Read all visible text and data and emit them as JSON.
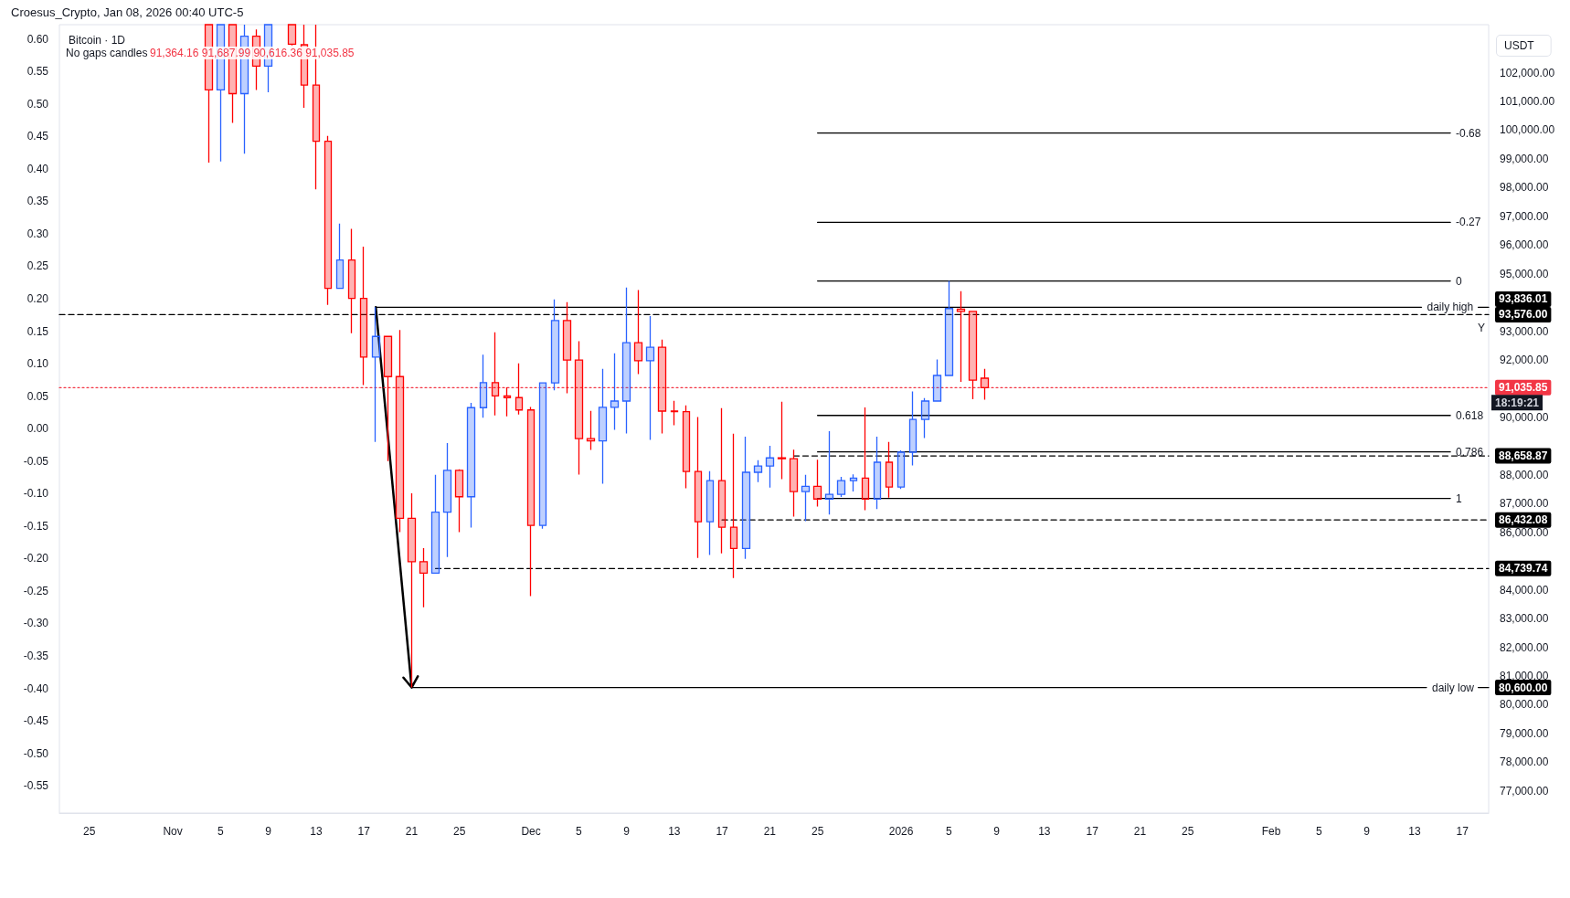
{
  "chart_data": {
    "type": "candlestick",
    "title": "Bitcoin · 1D",
    "ylabel": "USDT",
    "annotations": [
      "Croesus_Crypto, Jan 08, 2026 00:40 UTC-5",
      "No gaps candles",
      "91,364.16 91,687.99 90,616.36 91,035.85",
      "18:19:21"
    ],
    "xlim": [
      "2025-10-22T12:00",
      "2026-02-19T05:00"
    ],
    "xticks": [
      {
        "value": "2025-10-25",
        "label": "25"
      },
      {
        "value": "2025-11-01",
        "label": "Nov"
      },
      {
        "value": "2025-11-05",
        "label": "5"
      },
      {
        "value": "2025-11-09",
        "label": "9"
      },
      {
        "value": "2025-11-13",
        "label": "13"
      },
      {
        "value": "2025-11-17",
        "label": "17"
      },
      {
        "value": "2025-11-21",
        "label": "21"
      },
      {
        "value": "2025-11-25",
        "label": "25"
      },
      {
        "value": "2025-12-01",
        "label": "Dec"
      },
      {
        "value": "2025-12-05",
        "label": "5"
      },
      {
        "value": "2025-12-09",
        "label": "9"
      },
      {
        "value": "2025-12-13",
        "label": "13"
      },
      {
        "value": "2025-12-17",
        "label": "17"
      },
      {
        "value": "2025-12-21",
        "label": "21"
      },
      {
        "value": "2025-12-25",
        "label": "25"
      },
      {
        "value": "2026-01-01",
        "label": "2026"
      },
      {
        "value": "2026-01-05",
        "label": "5"
      },
      {
        "value": "2026-01-09",
        "label": "9"
      },
      {
        "value": "2026-01-13",
        "label": "13"
      },
      {
        "value": "2026-01-17",
        "label": "17"
      },
      {
        "value": "2026-01-21",
        "label": "21"
      },
      {
        "value": "2026-01-25",
        "label": "25"
      },
      {
        "value": "2026-02-01",
        "label": "Feb"
      },
      {
        "value": "2026-02-05",
        "label": "5"
      },
      {
        "value": "2026-02-09",
        "label": "9"
      },
      {
        "value": "2026-02-13",
        "label": "13"
      },
      {
        "value": "2026-02-17",
        "label": "17"
      }
    ],
    "ylim": [
      76230,
      103670
    ],
    "yticks": [
      {
        "value": 77000,
        "label": "77,000.00"
      },
      {
        "value": 78000,
        "label": "78,000.00"
      },
      {
        "value": 79000,
        "label": "79,000.00"
      },
      {
        "value": 80000,
        "label": "80,000.00"
      },
      {
        "value": 81000,
        "label": "81,000.00"
      },
      {
        "value": 82000,
        "label": "82,000.00"
      },
      {
        "value": 83000,
        "label": "83,000.00"
      },
      {
        "value": 84000,
        "label": "84,000.00"
      },
      {
        "value": 86000,
        "label": "86,000.00"
      },
      {
        "value": 87000,
        "label": "87,000.00"
      },
      {
        "value": 88000,
        "label": "88,000.00"
      },
      {
        "value": 90000,
        "label": "90,000.00"
      },
      {
        "value": 92000,
        "label": "92,000.00"
      },
      {
        "value": 93000,
        "label": "93,000.00"
      },
      {
        "value": 95000,
        "label": "95,000.00"
      },
      {
        "value": 96000,
        "label": "96,000.00"
      },
      {
        "value": 97000,
        "label": "97,000.00"
      },
      {
        "value": 98000,
        "label": "98,000.00"
      },
      {
        "value": 99000,
        "label": "99,000.00"
      },
      {
        "value": 100000,
        "label": "100,000.00"
      },
      {
        "value": 101000,
        "label": "101,000.00"
      },
      {
        "value": 102000,
        "label": "102,000.00"
      }
    ],
    "y2lim": [
      -0.592,
      0.622
    ],
    "y2ticks": [
      -0.55,
      {
        "value": -0.5,
        "label": "-0.50"
      },
      -0.45,
      {
        "value": -0.4,
        "label": "-0.40"
      },
      -0.35,
      {
        "value": -0.3,
        "label": "-0.30"
      },
      -0.25,
      {
        "value": -0.2,
        "label": "-0.20"
      },
      -0.15,
      {
        "value": -0.1,
        "label": "-0.10"
      },
      -0.05,
      {
        "value": 0,
        "label": "0.00"
      },
      0.05,
      {
        "value": 0.1,
        "label": "0.10"
      },
      0.15,
      {
        "value": 0.2,
        "label": "0.20"
      },
      0.25,
      {
        "value": 0.3,
        "label": "0.30"
      },
      0.35,
      {
        "value": 0.4,
        "label": "0.40"
      },
      0.45,
      {
        "value": 0.5,
        "label": "0.50"
      },
      0.55,
      {
        "value": 0.6,
        "label": "0.60"
      }
    ],
    "grid": false,
    "legend": false,
    "series": [
      {
        "colors": [
          "#ff0000",
          "#2962ff",
          "#ff0000",
          "#2962ff",
          "#ff0000",
          "#2962ff",
          "#ff0000",
          "#ff0000",
          "#ff0000",
          "#ff0000",
          "#2962ff",
          "#ff0000",
          "#ff0000",
          "#2962ff",
          "#ff0000",
          "#ff0000",
          "#ff0000",
          "#ff0000",
          "#2962ff",
          "#2962ff",
          "#ff0000",
          "#2962ff",
          "#2962ff",
          "#ff0000",
          "#ff0000",
          "#ff0000",
          "#ff0000",
          "#2962ff",
          "#2962ff",
          "#ff0000",
          "#ff0000",
          "#ff0000",
          "#2962ff",
          "#2962ff",
          "#2962ff",
          "#ff0000",
          "#2962ff",
          "#ff0000",
          "#ff0000",
          "#ff0000",
          "#ff0000",
          "#2962ff",
          "#ff0000",
          "#ff0000",
          "#2962ff",
          "#2962ff",
          "#2962ff",
          "#ff0000",
          "#ff0000",
          "#2962ff",
          "#ff0000",
          "#2962ff",
          "#2962ff",
          "#2962ff",
          "#ff0000",
          "#2962ff",
          "#ff0000",
          "#2962ff",
          "#2962ff",
          "#2962ff",
          "#2962ff",
          "#2962ff",
          "#ff0000",
          "#ff0000",
          "#ff0000"
        ],
        "x": [
          "2025-11-04",
          "2025-11-05",
          "2025-11-06",
          "2025-11-07",
          "2025-11-08",
          "2025-11-09",
          "2025-11-11",
          "2025-11-12",
          "2025-11-13",
          "2025-11-14",
          "2025-11-15",
          "2025-11-16",
          "2025-11-17",
          "2025-11-18",
          "2025-11-19",
          "2025-11-20",
          "2025-11-21",
          "2025-11-22",
          "2025-11-23",
          "2025-11-24",
          "2025-11-25",
          "2025-11-26",
          "2025-11-27",
          "2025-11-28",
          "2025-11-29",
          "2025-11-30",
          "2025-12-01",
          "2025-12-02",
          "2025-12-03",
          "2025-12-04",
          "2025-12-05",
          "2025-12-06",
          "2025-12-07",
          "2025-12-08",
          "2025-12-09",
          "2025-12-10",
          "2025-12-11",
          "2025-12-12",
          "2025-12-13",
          "2025-12-14",
          "2025-12-15",
          "2025-12-16",
          "2025-12-17",
          "2025-12-18",
          "2025-12-19",
          "2025-12-20",
          "2025-12-21",
          "2025-12-22",
          "2025-12-23",
          "2025-12-24",
          "2025-12-25",
          "2025-12-26",
          "2025-12-27",
          "2025-12-28",
          "2025-12-29",
          "2025-12-30",
          "2025-12-31",
          "2026-01-01",
          "2026-01-02",
          "2026-01-03",
          "2026-01-04",
          "2026-01-05",
          "2026-01-06",
          "2026-01-07",
          "2026-01-08"
        ],
        "ohlc": [
          [
            103670,
            103670,
            98870,
            101400
          ],
          [
            101400,
            103670,
            98910,
            103670
          ],
          [
            103670,
            103670,
            100250,
            101270
          ],
          [
            101270,
            103670,
            99180,
            103270
          ],
          [
            103270,
            103500,
            101400,
            102230
          ],
          [
            102230,
            103670,
            101320,
            103670
          ],
          [
            103670,
            103670,
            102950,
            102990
          ],
          [
            102970,
            103670,
            100780,
            101570
          ],
          [
            101570,
            103670,
            97940,
            99610
          ],
          [
            99610,
            99800,
            93920,
            94490
          ],
          [
            94490,
            96750,
            94490,
            95480
          ],
          [
            95480,
            96560,
            92930,
            94140
          ],
          [
            94140,
            95940,
            91130,
            92100
          ],
          [
            92100,
            93836.01,
            89150,
            92820
          ],
          [
            92820,
            92820,
            88480,
            91420
          ],
          [
            91420,
            93040,
            86010,
            86490
          ],
          [
            86490,
            87360,
            80600,
            84980
          ],
          [
            84980,
            85450,
            83390,
            84580
          ],
          [
            84580,
            88000,
            84580,
            86700
          ],
          [
            86700,
            89110,
            85140,
            88160
          ],
          [
            88160,
            88190,
            86010,
            87240
          ],
          [
            87240,
            90510,
            86170,
            90340
          ],
          [
            90340,
            92180,
            89990,
            91210
          ],
          [
            91210,
            92960,
            90070,
            90750
          ],
          [
            90750,
            91050,
            90040,
            90690
          ],
          [
            90690,
            91880,
            90100,
            90260
          ],
          [
            90260,
            90360,
            83780,
            86240
          ],
          [
            86240,
            91200,
            86130,
            91200
          ],
          [
            91200,
            94110,
            90940,
            93370
          ],
          [
            93370,
            94010,
            90840,
            92000
          ],
          [
            92000,
            92650,
            88010,
            89260
          ],
          [
            89260,
            90230,
            88870,
            89180
          ],
          [
            89180,
            91690,
            87690,
            90350
          ],
          [
            90350,
            92230,
            89570,
            90570
          ],
          [
            90570,
            94520,
            89440,
            92600
          ],
          [
            92600,
            94430,
            91510,
            91970
          ],
          [
            91970,
            93530,
            89220,
            92440
          ],
          [
            92440,
            92710,
            89440,
            90220
          ],
          [
            90220,
            90580,
            89730,
            90200
          ],
          [
            90200,
            90420,
            87530,
            88120
          ],
          [
            88120,
            90010,
            85110,
            86370
          ],
          [
            86370,
            88130,
            85210,
            87800
          ],
          [
            87800,
            90320,
            85270,
            86180
          ],
          [
            86180,
            89430,
            84410,
            85440
          ],
          [
            85440,
            89330,
            85080,
            88090
          ],
          [
            88090,
            88510,
            87750,
            88310
          ],
          [
            88310,
            89010,
            87560,
            88590
          ],
          [
            88590,
            90550,
            87850,
            88560
          ],
          [
            88560,
            88880,
            86550,
            87420
          ],
          [
            87420,
            88000,
            86390,
            87600
          ],
          [
            87600,
            88530,
            86900,
            87160
          ],
          [
            87160,
            89520,
            86620,
            87320
          ],
          [
            87320,
            87930,
            87230,
            87800
          ],
          [
            87800,
            88020,
            87420,
            87890
          ],
          [
            87890,
            90350,
            86770,
            87160
          ],
          [
            87160,
            89330,
            86810,
            88440
          ],
          [
            88440,
            89150,
            87210,
            87580
          ],
          [
            87580,
            88850,
            87510,
            88790
          ],
          [
            88790,
            90900,
            88330,
            89930
          ],
          [
            89930,
            90670,
            89280,
            90570
          ],
          [
            90570,
            92020,
            90570,
            91460
          ],
          [
            91460,
            94750,
            91460,
            93790
          ],
          [
            93770,
            94390,
            91240,
            93690
          ],
          [
            93690,
            93690,
            90630,
            91300
          ],
          [
            91364.16,
            91687.99,
            90616.36,
            91035.85
          ]
        ]
      },
      {
        "type": "line",
        "name": "daily high",
        "color": "#000000",
        "x": [
          "2025-11-18",
          "2026-02-13T14:00"
        ],
        "values": [
          93836.01,
          93836.01
        ]
      },
      {
        "type": "line",
        "name": "daily low",
        "color": "#000000",
        "x": [
          "2025-11-21",
          "2026-02-14"
        ],
        "values": [
          80600,
          80600
        ]
      },
      {
        "type": "line",
        "color": "#000000",
        "x": [
          "2026-02-18T08:00",
          "2026-02-19T05:00"
        ],
        "values": [
          93836.01,
          93836.01
        ],
        "value_labels": [
          null,
          "93,836.01"
        ]
      },
      {
        "type": "line",
        "color": "#000000",
        "x": [
          "2026-02-18T08:00",
          "2026-02-19T05:00"
        ],
        "values": [
          80600,
          80600
        ],
        "value_labels": [
          null,
          "80,600.00"
        ]
      },
      {
        "type": "line",
        "name": "Y",
        "color": "#000000",
        "line_style": "dashed",
        "x": [
          "2025-10-22T12:00",
          "2026-02-19T05:00"
        ],
        "values": [
          93576,
          93576
        ],
        "value_labels": [
          null,
          "93,576.00"
        ]
      },
      {
        "type": "line",
        "color": "#f23645",
        "line_style": "dotted",
        "x": [
          "2025-10-22T12:00",
          "2026-02-19T05:00"
        ],
        "values": [
          91035.85,
          91035.85
        ],
        "value_labels": [
          null,
          "91,035.85"
        ]
      },
      {
        "type": "line",
        "color": "#000000",
        "line_style": "dashed",
        "x": [
          "2025-12-23",
          "2026-02-19T05:00"
        ],
        "values": [
          88658.87,
          88658.87
        ],
        "value_labels": [
          null,
          "88,658.87"
        ]
      },
      {
        "type": "line",
        "color": "#000000",
        "line_style": "dashed",
        "x": [
          "2025-12-17",
          "2026-02-19T05:00"
        ],
        "values": [
          86432.08,
          86432.08
        ],
        "value_labels": [
          null,
          "86,432.08"
        ]
      },
      {
        "type": "line",
        "color": "#000000",
        "line_style": "dashed",
        "x": [
          "2025-11-23",
          "2026-02-19T05:00"
        ],
        "values": [
          84739.74,
          84739.74
        ],
        "value_labels": [
          null,
          "84,739.74"
        ]
      },
      {
        "type": "line",
        "name": "-0.68",
        "color": "#000000",
        "x": [
          "2025-12-25",
          "2026-02-16"
        ],
        "values": [
          99900,
          99900
        ]
      },
      {
        "type": "line",
        "name": "-0.27",
        "color": "#000000",
        "x": [
          "2025-12-25",
          "2026-02-16"
        ],
        "values": [
          96790,
          96790
        ]
      },
      {
        "type": "line",
        "name": "0",
        "color": "#000000",
        "x": [
          "2025-12-25",
          "2026-02-16"
        ],
        "values": [
          94750,
          94750
        ]
      },
      {
        "type": "line",
        "name": "0.618",
        "color": "#000000",
        "x": [
          "2025-12-25",
          "2026-02-16"
        ],
        "values": [
          90070,
          90070
        ]
      },
      {
        "type": "line",
        "name": "0.786",
        "color": "#000000",
        "x": [
          "2025-12-25",
          "2026-02-16"
        ],
        "values": [
          88800,
          88800
        ]
      },
      {
        "type": "line",
        "name": "1",
        "color": "#000000",
        "x": [
          "2025-12-25",
          "2026-02-16"
        ],
        "values": [
          87180,
          87180
        ]
      }
    ]
  }
}
